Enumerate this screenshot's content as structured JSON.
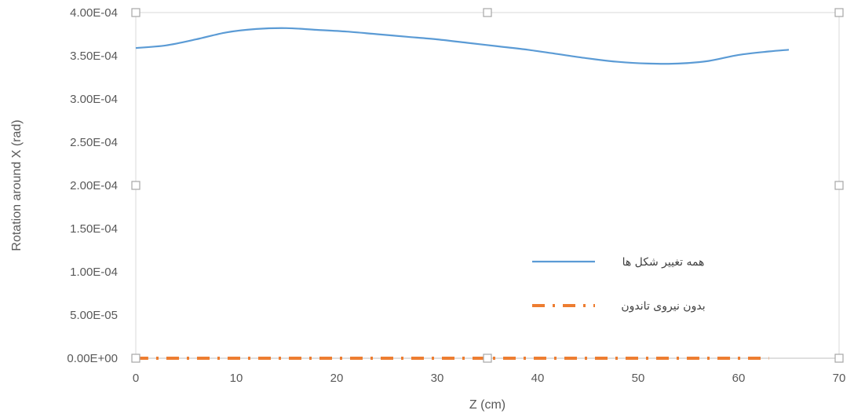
{
  "chart_data": {
    "type": "line",
    "xlabel": "Z (cm)",
    "ylabel": "Rotation around X (rad)",
    "xlim": [
      0,
      70
    ],
    "ylim": [
      0,
      0.0004
    ],
    "x_ticks": [
      "0",
      "10",
      "20",
      "30",
      "40",
      "50",
      "60",
      "70"
    ],
    "y_ticks": [
      "0.00E+00",
      "5.00E-05",
      "1.00E-04",
      "1.50E-04",
      "2.00E-04",
      "2.50E-04",
      "3.00E-04",
      "3.50E-04",
      "4.00E-04"
    ],
    "grid": false,
    "legend_position": "right",
    "series": [
      {
        "name": "همه تغییر شکل ها",
        "color": "#5B9BD5",
        "style": "solid",
        "x": [
          0,
          3,
          6,
          9,
          12,
          15,
          18,
          21,
          24,
          27,
          30,
          33,
          36,
          39,
          42,
          45,
          48,
          51,
          54,
          57,
          60,
          63,
          65
        ],
        "y": [
          0.000359,
          0.000362,
          0.000369,
          0.000377,
          0.000381,
          0.000382,
          0.00038,
          0.000378,
          0.000375,
          0.000372,
          0.000369,
          0.000365,
          0.000361,
          0.000357,
          0.000352,
          0.000347,
          0.000343,
          0.000341,
          0.000341,
          0.000344,
          0.000351,
          0.000355,
          0.000357
        ]
      },
      {
        "name": "بدون نیروی تاندون",
        "color": "#ED7D31",
        "style": "dash-dot",
        "x": [
          0,
          5,
          10,
          15,
          20,
          25,
          30,
          35,
          40,
          45,
          50,
          55,
          60,
          63
        ],
        "y": [
          0,
          0,
          0,
          0,
          0,
          0,
          0,
          0,
          0,
          0,
          0,
          0,
          0,
          0
        ]
      }
    ]
  }
}
